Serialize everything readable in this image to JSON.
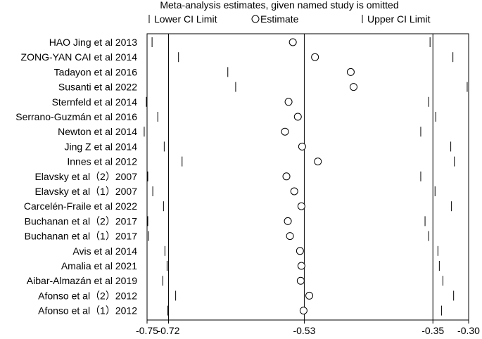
{
  "chart_data": {
    "type": "scatter",
    "title": "Meta-analysis estimates, given named study is omitted",
    "legend": {
      "placement": "top",
      "items": [
        {
          "symbol": "tick",
          "label": "Lower CI Limit"
        },
        {
          "symbol": "circle",
          "label": "Estimate"
        },
        {
          "symbol": "tick",
          "label": "Upper CI Limit"
        }
      ]
    },
    "xlim": [
      -0.75,
      -0.3
    ],
    "x_ticks": [
      {
        "value": -0.75,
        "label": "-0.75"
      },
      {
        "value": -0.72,
        "label": "-0.72"
      },
      {
        "value": -0.53,
        "label": "-0.53"
      },
      {
        "value": -0.35,
        "label": "-0.35"
      },
      {
        "value": -0.3,
        "label": "-0.30"
      }
    ],
    "reference_lines": [
      -0.72,
      -0.53,
      -0.35
    ],
    "studies": [
      {
        "name": "HAO Jing et al 2013",
        "lower": -0.743,
        "estimate": -0.546,
        "upper": -0.354
      },
      {
        "name": "ZONG-YAN CAI et al 2014",
        "lower": -0.706,
        "estimate": -0.515,
        "upper": -0.322
      },
      {
        "name": "Tadayon et al 2016",
        "lower": -0.637,
        "estimate": -0.465,
        "upper": -0.3
      },
      {
        "name": "Susanti et al 2022",
        "lower": -0.626,
        "estimate": -0.461,
        "upper": -0.302
      },
      {
        "name": "Sternfeld et al 2014",
        "lower": -0.751,
        "estimate": -0.552,
        "upper": -0.356
      },
      {
        "name": "Serrano-Guzmán et al 2016",
        "lower": -0.735,
        "estimate": -0.539,
        "upper": -0.346
      },
      {
        "name": "Newton et al 2014",
        "lower": -0.754,
        "estimate": -0.557,
        "upper": -0.367
      },
      {
        "name": "Jing Z et al 2014",
        "lower": -0.726,
        "estimate": -0.533,
        "upper": -0.325
      },
      {
        "name": "Innes et al 2012",
        "lower": -0.701,
        "estimate": -0.511,
        "upper": -0.32
      },
      {
        "name": "Elavsky et al（2）2007",
        "lower": -0.749,
        "estimate": -0.555,
        "upper": -0.367
      },
      {
        "name": "Elavsky et al（1）2007",
        "lower": -0.742,
        "estimate": -0.544,
        "upper": -0.347
      },
      {
        "name": "Carcelén-Fraile et al 2022",
        "lower": -0.727,
        "estimate": -0.534,
        "upper": -0.324
      },
      {
        "name": "Buchanan et al（2）2017",
        "lower": -0.749,
        "estimate": -0.553,
        "upper": -0.361
      },
      {
        "name": "Buchanan et al（1）2017",
        "lower": -0.748,
        "estimate": -0.55,
        "upper": -0.356
      },
      {
        "name": "Avis et al 2014",
        "lower": -0.725,
        "estimate": -0.536,
        "upper": -0.343
      },
      {
        "name": "Amalia et al 2021",
        "lower": -0.722,
        "estimate": -0.534,
        "upper": -0.341
      },
      {
        "name": "Aibar-Almazán et al 2019",
        "lower": -0.728,
        "estimate": -0.535,
        "upper": -0.336
      },
      {
        "name": "Afonso et al（2）2012",
        "lower": -0.71,
        "estimate": -0.523,
        "upper": -0.321
      },
      {
        "name": "Afonso et al（1）2012",
        "lower": -0.721,
        "estimate": -0.531,
        "upper": -0.338
      }
    ]
  }
}
